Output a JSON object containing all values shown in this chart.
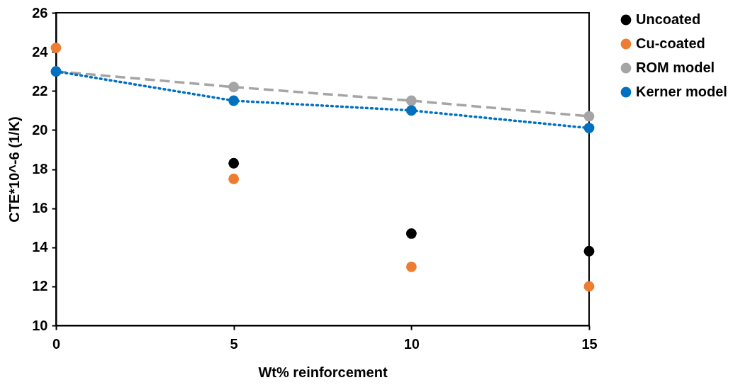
{
  "chart_data": {
    "type": "scatter",
    "xlabel": "Wt% reinforcement",
    "ylabel": "CTE*10^-6 (1/K)",
    "x": [
      0,
      5,
      10,
      15
    ],
    "xlim": [
      0,
      15
    ],
    "xticks": [
      0,
      5,
      10,
      15
    ],
    "ylim": [
      10,
      26
    ],
    "yticks": [
      10,
      12,
      14,
      16,
      18,
      20,
      22,
      24,
      26
    ],
    "grid": false,
    "legend": "right",
    "series": [
      {
        "name": "Uncoated",
        "color": "#000000",
        "marker": "circle",
        "values": [
          null,
          18.3,
          14.7,
          13.8
        ]
      },
      {
        "name": "Cu-coated",
        "color": "#ed7d31",
        "marker": "circle",
        "values": [
          24.2,
          17.5,
          13.0,
          12.0
        ]
      },
      {
        "name": "ROM model",
        "type": "line",
        "color": "#a5a5a5",
        "marker": "circle",
        "line_style": "dashed",
        "values": [
          23.0,
          22.2,
          21.5,
          20.7
        ]
      },
      {
        "name": "Kerner model",
        "type": "line",
        "color": "#0070c0",
        "marker": "circle",
        "line_style": "dotted",
        "values": [
          23.0,
          21.5,
          21.0,
          20.1
        ]
      }
    ]
  }
}
